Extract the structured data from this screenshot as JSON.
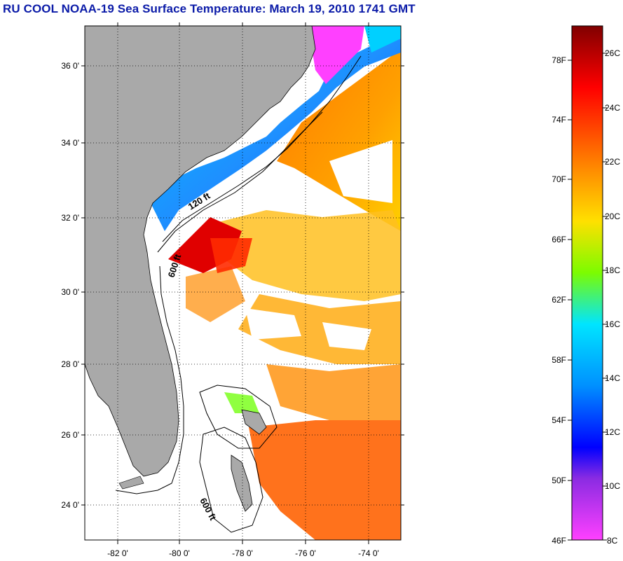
{
  "title": "RU COOL  NOAA-19  Sea Surface Temperature:  March 19, 2010 1741 GMT",
  "map": {
    "lat_labels": [
      "36 0'",
      "34 0'",
      "32 0'",
      "30 0'",
      "28 0'",
      "26 0'",
      "24 0'"
    ],
    "lon_labels": [
      "-82 0'",
      "-80 0'",
      "-78 0'",
      "-76 0'",
      "-74 0'"
    ],
    "contour_labels": [
      "120 ft",
      "600 ft",
      "600 ft"
    ],
    "colors": {
      "land": "#a9a9a9",
      "frame": "#000000",
      "grid": "#000000",
      "no_data": "#ffffff"
    }
  },
  "colorbar": {
    "fahrenheit_labels": [
      "78F",
      "74F",
      "70F",
      "66F",
      "62F",
      "58F",
      "54F",
      "50F",
      "46F"
    ],
    "celsius_labels": [
      "26C",
      "24C",
      "22C",
      "20C",
      "18C",
      "16C",
      "14C",
      "12C",
      "10C",
      "8C"
    ],
    "gradient_top_to_bottom": [
      "#800000",
      "#ff0000",
      "#ff8c00",
      "#ffe000",
      "#7cfc00",
      "#00e5ff",
      "#0090ff",
      "#0000ff",
      "#8a2be2",
      "#ff40ff"
    ]
  }
}
